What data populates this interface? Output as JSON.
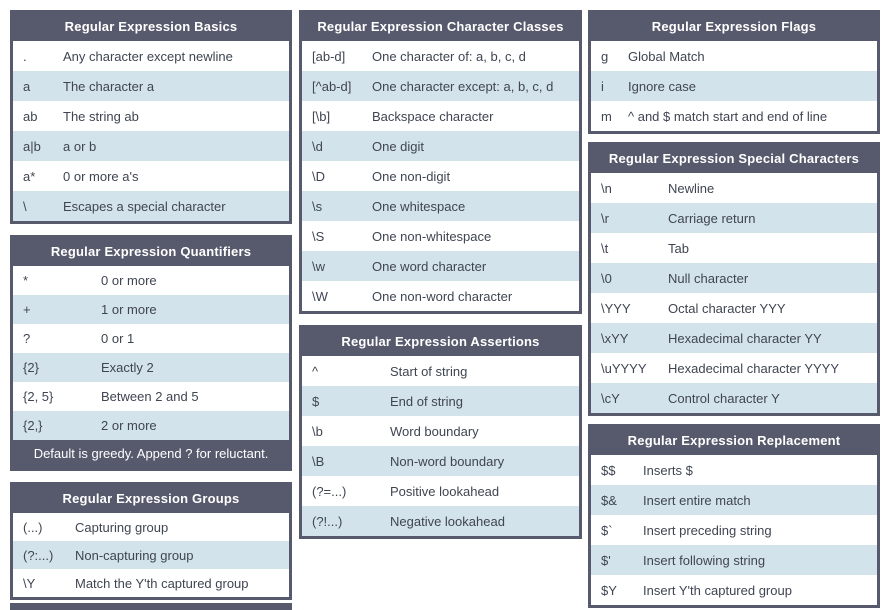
{
  "colors": {
    "header_bg": "#565A6C",
    "border": "#565A6C",
    "row_alt_bg": "#D3E3EB",
    "row_bg": "#FFFFFF",
    "header_text": "#FFFFFF",
    "body_text": "#3F4551"
  },
  "sections": {
    "basics": {
      "title": "Regular Expression Basics",
      "rows": [
        {
          "symbol": ".",
          "desc": "Any character except newline"
        },
        {
          "symbol": "a",
          "desc": "The character a"
        },
        {
          "symbol": "ab",
          "desc": "The string ab"
        },
        {
          "symbol": "a|b",
          "desc": "a or b"
        },
        {
          "symbol": "a*",
          "desc": "0 or more a's"
        },
        {
          "symbol": "\\",
          "desc": "Escapes a special character"
        }
      ]
    },
    "quantifiers": {
      "title": "Regular Expression Quantifiers",
      "rows": [
        {
          "symbol": "*",
          "desc": "0 or more"
        },
        {
          "symbol": "+",
          "desc": "1 or more"
        },
        {
          "symbol": "?",
          "desc": "0 or 1"
        },
        {
          "symbol": "{2}",
          "desc": "Exactly 2"
        },
        {
          "symbol": "{2, 5}",
          "desc": "Between 2 and 5"
        },
        {
          "symbol": "{2,}",
          "desc": "2 or more"
        }
      ],
      "note": "Default is greedy. Append ? for reluctant."
    },
    "groups": {
      "title": "Regular Expression Groups",
      "rows": [
        {
          "symbol": "(...)",
          "desc": "Capturing group"
        },
        {
          "symbol": "(?:...)",
          "desc": "Non-capturing group"
        },
        {
          "symbol": "\\Y",
          "desc": "Match the Y'th captured group"
        }
      ]
    },
    "character_classes": {
      "title": "Regular Expression Character Classes",
      "rows": [
        {
          "symbol": "[ab-d]",
          "desc": "One character of: a, b, c, d"
        },
        {
          "symbol": "[^ab-d]",
          "desc": "One character except: a, b, c, d"
        },
        {
          "symbol": "[\\b]",
          "desc": "Backspace character"
        },
        {
          "symbol": "\\d",
          "desc": "One digit"
        },
        {
          "symbol": "\\D",
          "desc": "One non-digit"
        },
        {
          "symbol": "\\s",
          "desc": "One whitespace"
        },
        {
          "symbol": "\\S",
          "desc": "One non-whitespace"
        },
        {
          "symbol": "\\w",
          "desc": "One word character"
        },
        {
          "symbol": "\\W",
          "desc": "One non-word character"
        }
      ]
    },
    "assertions": {
      "title": "Regular Expression Assertions",
      "rows": [
        {
          "symbol": "^",
          "desc": "Start of string"
        },
        {
          "symbol": "$",
          "desc": "End of string"
        },
        {
          "symbol": "\\b",
          "desc": "Word boundary"
        },
        {
          "symbol": "\\B",
          "desc": "Non-word boundary"
        },
        {
          "symbol": "(?=...)",
          "desc": "Positive lookahead"
        },
        {
          "symbol": "(?!...)",
          "desc": "Negative lookahead"
        }
      ]
    },
    "flags": {
      "title": "Regular Expression Flags",
      "rows": [
        {
          "symbol": "g",
          "desc": "Global Match"
        },
        {
          "symbol": "i",
          "desc": "Ignore case"
        },
        {
          "symbol": "m",
          "desc": "^ and $ match start and end of line"
        }
      ]
    },
    "special_characters": {
      "title": "Regular Expression Special Characters",
      "rows": [
        {
          "symbol": "\\n",
          "desc": "Newline"
        },
        {
          "symbol": "\\r",
          "desc": "Carriage return"
        },
        {
          "symbol": "\\t",
          "desc": "Tab"
        },
        {
          "symbol": "\\0",
          "desc": "Null character"
        },
        {
          "symbol": "\\YYY",
          "desc": "Octal character YYY"
        },
        {
          "symbol": "\\xYY",
          "desc": "Hexadecimal character YY"
        },
        {
          "symbol": "\\uYYYY",
          "desc": "Hexadecimal character YYYY"
        },
        {
          "symbol": "\\cY",
          "desc": "Control character Y"
        }
      ]
    },
    "replacement": {
      "title": "Regular Expression Replacement",
      "rows": [
        {
          "symbol": "$$",
          "desc": "Inserts $"
        },
        {
          "symbol": "$&",
          "desc": "Insert entire match"
        },
        {
          "symbol": "$`",
          "desc": "Insert preceding string"
        },
        {
          "symbol": "$'",
          "desc": "Insert following string"
        },
        {
          "symbol": "$Y",
          "desc": "Insert Y'th captured group"
        }
      ]
    }
  }
}
